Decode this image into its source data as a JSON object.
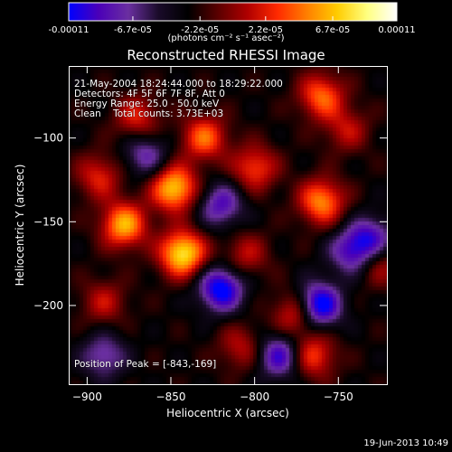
{
  "colors": {
    "background": "#000000",
    "foreground": "#ffffff",
    "colorbar_stops": [
      "#0000ff",
      "#4b00b8",
      "#6a2fa0",
      "#1a0b2a",
      "#000000",
      "#5a0000",
      "#b00000",
      "#ff2a00",
      "#ff8000",
      "#ffcc00",
      "#ffff80",
      "#ffffff"
    ]
  },
  "colorbar": {
    "ticks": [
      "-0.00011",
      "-6.7e-05",
      "-2.2e-05",
      "2.2e-05",
      "6.7e-05",
      "0.00011"
    ],
    "unit_label": "(photons cm⁻² s⁻¹ asec⁻²)"
  },
  "plot": {
    "title": "Reconstructed RHESSI Image",
    "info_lines": [
      "21-May-2004 18:24:44.000 to 18:29:22.000",
      "Detectors: 4F 5F 6F 7F 8F, Att 0",
      "Energy Range: 25.0 - 50.0 keV",
      "Clean    Total counts: 3.73E+03"
    ],
    "peak_label": "Position of Peak = [-843,-169]"
  },
  "footer": {
    "timestamp": "19-Jun-2013 10:49"
  },
  "chart_data": {
    "type": "heatmap",
    "title": "Reconstructed RHESSI Image",
    "xlabel": "Heliocentric X (arcsec)",
    "ylabel": "Heliocentric Y (arcsec)",
    "xlim": [
      -911,
      -721
    ],
    "ylim": [
      -247,
      -57
    ],
    "x_ticks": [
      -900,
      -850,
      -800,
      -750
    ],
    "y_ticks": [
      -200,
      -150,
      -100
    ],
    "colorbar_range": [
      -0.00011,
      0.00011
    ],
    "peak_position": [
      -843,
      -169
    ],
    "sources_approx": [
      {
        "x": -843,
        "y": -169,
        "value": 0.00011
      },
      {
        "x": -848,
        "y": -130,
        "value": 0.0001
      },
      {
        "x": -878,
        "y": -152,
        "value": 9e-05
      },
      {
        "x": -830,
        "y": -100,
        "value": 7e-05
      },
      {
        "x": -760,
        "y": -138,
        "value": 8e-05
      },
      {
        "x": -800,
        "y": -118,
        "value": 6e-05
      },
      {
        "x": -760,
        "y": -75,
        "value": 7e-05
      },
      {
        "x": -775,
        "y": -205,
        "value": 6e-05
      },
      {
        "x": -893,
        "y": -123,
        "value": 5e-05
      },
      {
        "x": -808,
        "y": -225,
        "value": 4e-05
      },
      {
        "x": -765,
        "y": -230,
        "value": 6e-05
      },
      {
        "x": -890,
        "y": -198,
        "value": 4e-05
      },
      {
        "x": -870,
        "y": -88,
        "value": 5e-05
      },
      {
        "x": -805,
        "y": -170,
        "value": 4e-05
      },
      {
        "x": -745,
        "y": -95,
        "value": 4e-05
      },
      {
        "x": -725,
        "y": -175,
        "value": 4e-05
      },
      {
        "x": -820,
        "y": -190,
        "value": -9e-05
      },
      {
        "x": -762,
        "y": -200,
        "value": -0.0001
      },
      {
        "x": -742,
        "y": -168,
        "value": -6e-05
      },
      {
        "x": -730,
        "y": -160,
        "value": -6e-05
      },
      {
        "x": -820,
        "y": -140,
        "value": -6e-05
      },
      {
        "x": -865,
        "y": -110,
        "value": -5e-05
      },
      {
        "x": -785,
        "y": -230,
        "value": -7e-05
      },
      {
        "x": -890,
        "y": -230,
        "value": -5e-05
      }
    ]
  }
}
